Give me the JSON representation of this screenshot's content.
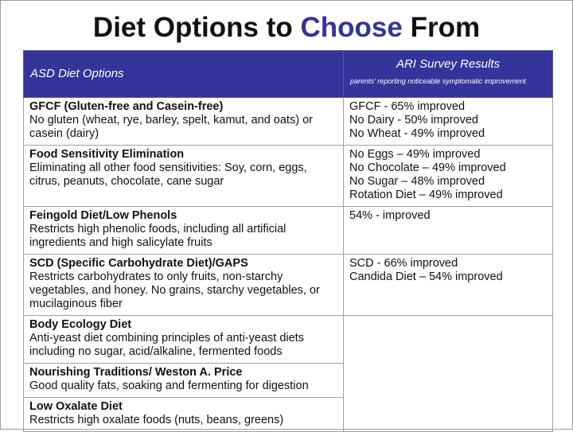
{
  "title_parts": [
    "Diet Options to",
    "Choose",
    "From"
  ],
  "table": {
    "header": {
      "left": "ASD Diet Options",
      "right": "ARI Survey Results",
      "right_note": "parents' reporting noticeable symptomatic improvement"
    },
    "rows": [
      {
        "name": "GFCF (Gluten-free and Casein-free)",
        "description": "No gluten (wheat, rye, barley, spelt, kamut, and oats) or casein (dairy)",
        "results": [
          "GFCF - 65% improved",
          "No Dairy - 50% improved",
          "No Wheat - 49% improved"
        ]
      },
      {
        "name": "Food Sensitivity Elimination",
        "description": "Eliminating all other food sensitivities: Soy, corn, eggs, citrus, peanuts, chocolate, cane sugar",
        "results": [
          "No Eggs – 49% improved",
          "No Chocolate – 49% improved",
          "No Sugar – 48% improved",
          "Rotation Diet – 49% improved"
        ]
      },
      {
        "name": "Feingold Diet/Low Phenols",
        "description": "Restricts high phenolic foods, including all artificial ingredients and high salicylate fruits",
        "results": [
          "54% - improved"
        ]
      },
      {
        "name": "SCD (Specific Carbohydrate Diet)/GAPS",
        "description": "Restricts carbohydrates to only fruits, non-starchy vegetables, and honey.  No grains, starchy vegetables, or mucilaginous fiber",
        "results": [
          "SCD - 66% improved",
          "Candida Diet – 54% improved"
        ]
      },
      {
        "name": "Body Ecology Diet",
        "description": "Anti-yeast diet combining principles of anti-yeast diets including no sugar, acid/alkaline, fermented foods"
      },
      {
        "name": "Nourishing Traditions/ Weston A. Price",
        "description": "Good quality fats, soaking and fermenting for digestion"
      },
      {
        "name": "Low Oxalate Diet",
        "description": "Restricts high oxalate foods (nuts, beans, greens)"
      }
    ]
  }
}
